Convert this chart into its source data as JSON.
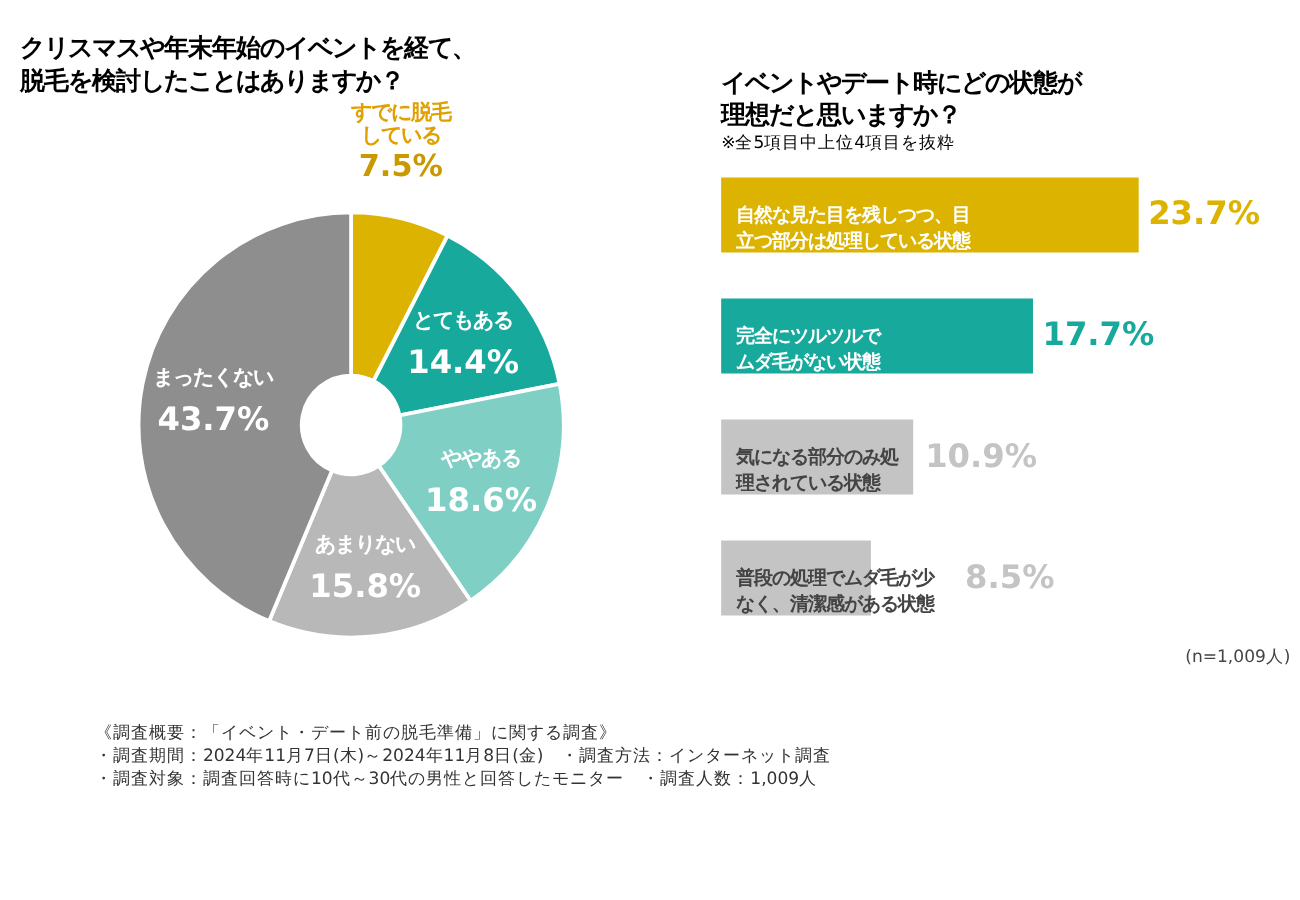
{
  "chart_data": [
    {
      "type": "donut",
      "title": "クリスマスや年末年始のイベントを経て、脱毛を検討したことはありますか？",
      "categories": [
        "すでに脱毛している",
        "とてもある",
        "ややある",
        "あまりない",
        "まったくない"
      ],
      "values": [
        7.5,
        14.4,
        18.6,
        15.8,
        43.7
      ],
      "value_labels": [
        "7.5%",
        "14.4%",
        "18.6%",
        "15.8%",
        "43.7%"
      ],
      "colors": [
        "#dcb300",
        "#17a99b",
        "#7fcfc4",
        "#b8b8b8",
        "#8e8e8e"
      ]
    },
    {
      "type": "bar",
      "orientation": "horizontal",
      "title": "イベントやデート時にどの状態が理想だと思いますか？",
      "subtitle": "※全5項目中上位4項目を抜粋",
      "categories": [
        "自然な見た目を残しつつ、目立つ部分は処理している状態",
        "完全にツルツルでムダ毛がない状態",
        "気になる部分のみ処理されている状態",
        "普段の処理でムダ毛が少なく、清潔感がある状態"
      ],
      "values": [
        23.7,
        17.7,
        10.9,
        8.5
      ],
      "value_labels": [
        "23.7%",
        "17.7%",
        "10.9%",
        "8.5%"
      ],
      "colors": [
        "#dcb300",
        "#17a99b",
        "#c4c4c4",
        "#c4c4c4"
      ],
      "annotations": [
        "(n=1,009人)",
        "《調査概要：「イベント・デート前の脱毛準備」に関する調査》",
        "・調査期間：2024年11月7日(木)～2024年11月8日(金)　・調査方法：インターネット調査",
        "・調査対象：調査回答時に10代～30代の男性と回答したモニター　・調査人数：1,009人"
      ]
    }
  ]
}
